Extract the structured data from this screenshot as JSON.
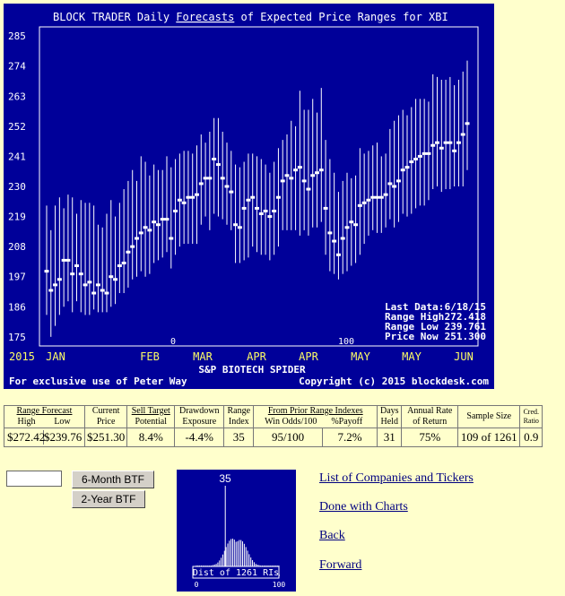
{
  "chart": {
    "title_prefix": "BLOCK TRADER Daily ",
    "title_link": "Forecasts",
    "title_suffix": " of Expected Price Ranges for  XBI",
    "y_ticks": [
      "285",
      "274",
      "263",
      "252",
      "241",
      "230",
      "219",
      "208",
      "197",
      "186",
      "175"
    ],
    "y_tick_values": [
      285,
      274,
      263,
      252,
      241,
      230,
      219,
      208,
      197,
      186,
      175
    ],
    "x_year": "2015",
    "x_months": [
      "JAN",
      "FEB",
      "MAR",
      "APR",
      "APR",
      "MAY",
      "MAY",
      "JUN"
    ],
    "marker_0": "0",
    "marker_100": "100",
    "company_name": "S&P BIOTECH SPIDER",
    "footer_left": "For exclusive use of Peter Way",
    "footer_right": "Copyright (c) 2015 blockdesk.com",
    "last_data_label": "Last Data:",
    "last_data_value": "6/18/15",
    "range_high_label": "Range High",
    "range_high_value": "272.418",
    "range_low_label": "Range Low",
    "range_low_value": "239.761",
    "price_now_label": "Price Now",
    "price_now_value": "251.300",
    "colors": {
      "background": "#000099",
      "text": "#ffffff",
      "month_labels": "#ffff66",
      "lines": "#ffffff"
    }
  },
  "chart_data": {
    "type": "range-forecast",
    "y_range": [
      172,
      288
    ],
    "points": [
      [
        0,
        199,
        183,
        223
      ],
      [
        1,
        192,
        175,
        214
      ],
      [
        2,
        194,
        179,
        223
      ],
      [
        3,
        196,
        183,
        226
      ],
      [
        4,
        203,
        186,
        222
      ],
      [
        5,
        203,
        188,
        227
      ],
      [
        6,
        198,
        184,
        226
      ],
      [
        7,
        201,
        188,
        220
      ],
      [
        8,
        198,
        184,
        225
      ],
      [
        9,
        194,
        183,
        224
      ],
      [
        10,
        195,
        183,
        224
      ],
      [
        11,
        191,
        185,
        223
      ],
      [
        12,
        194,
        184,
        216
      ],
      [
        13,
        192,
        184,
        215
      ],
      [
        14,
        191,
        184,
        220
      ],
      [
        15,
        197,
        186,
        225
      ],
      [
        16,
        196,
        187,
        219
      ],
      [
        17,
        201,
        191,
        224
      ],
      [
        18,
        202,
        191,
        229
      ],
      [
        19,
        206,
        193,
        232
      ],
      [
        20,
        208,
        196,
        236
      ],
      [
        21,
        211,
        197,
        232
      ],
      [
        22,
        213,
        199,
        241
      ],
      [
        23,
        215,
        197,
        239
      ],
      [
        24,
        214,
        198,
        234
      ],
      [
        25,
        217,
        202,
        238
      ],
      [
        26,
        216,
        203,
        236
      ],
      [
        27,
        218,
        204,
        236
      ],
      [
        28,
        218,
        206,
        241
      ],
      [
        29,
        211,
        200,
        237
      ],
      [
        30,
        221,
        205,
        240
      ],
      [
        31,
        225,
        208,
        242
      ],
      [
        32,
        224,
        209,
        243
      ],
      [
        33,
        226,
        209,
        243
      ],
      [
        34,
        226,
        209,
        242
      ],
      [
        35,
        227,
        209,
        245
      ],
      [
        36,
        231,
        216,
        249
      ],
      [
        37,
        233,
        219,
        246
      ],
      [
        38,
        233,
        214,
        250
      ],
      [
        39,
        240,
        220,
        255
      ],
      [
        40,
        238,
        219,
        255
      ],
      [
        41,
        233,
        218,
        250
      ],
      [
        42,
        230,
        216,
        246
      ],
      [
        43,
        228,
        214,
        243
      ],
      [
        44,
        216,
        202,
        238
      ],
      [
        45,
        215,
        202,
        237
      ],
      [
        46,
        222,
        203,
        239
      ],
      [
        47,
        225,
        204,
        242
      ],
      [
        48,
        226,
        208,
        242
      ],
      [
        49,
        222,
        206,
        241
      ],
      [
        50,
        220,
        205,
        240
      ],
      [
        51,
        221,
        205,
        238
      ],
      [
        52,
        219,
        203,
        235
      ],
      [
        53,
        221,
        205,
        239
      ],
      [
        54,
        226,
        208,
        244
      ],
      [
        55,
        232,
        214,
        247
      ],
      [
        56,
        234,
        214,
        249
      ],
      [
        57,
        233,
        214,
        254
      ],
      [
        58,
        236,
        214,
        252
      ],
      [
        59,
        237,
        212,
        265
      ],
      [
        60,
        232,
        214,
        258
      ],
      [
        61,
        229,
        212,
        258
      ],
      [
        62,
        234,
        215,
        262
      ],
      [
        63,
        235,
        215,
        257
      ],
      [
        64,
        236,
        217,
        266
      ],
      [
        65,
        222,
        205,
        247
      ],
      [
        66,
        213,
        199,
        240
      ],
      [
        67,
        210,
        198,
        235
      ],
      [
        68,
        205,
        196,
        228
      ],
      [
        69,
        211,
        198,
        232
      ],
      [
        70,
        215,
        199,
        235
      ],
      [
        71,
        217,
        201,
        233
      ],
      [
        72,
        216,
        202,
        234
      ],
      [
        73,
        223,
        205,
        244
      ],
      [
        74,
        224,
        209,
        242
      ],
      [
        75,
        225,
        212,
        243
      ],
      [
        76,
        226,
        214,
        245
      ],
      [
        77,
        226,
        213,
        246
      ],
      [
        78,
        226,
        213,
        241
      ],
      [
        79,
        227,
        215,
        242
      ],
      [
        80,
        231,
        218,
        251
      ],
      [
        81,
        230,
        215,
        254
      ],
      [
        82,
        232,
        217,
        256
      ],
      [
        83,
        236,
        220,
        258
      ],
      [
        84,
        237,
        219,
        256
      ],
      [
        85,
        239,
        220,
        259
      ],
      [
        86,
        240,
        222,
        262
      ],
      [
        87,
        241,
        223,
        262
      ],
      [
        88,
        242,
        223,
        262
      ],
      [
        89,
        242,
        225,
        261
      ],
      [
        90,
        245,
        229,
        271
      ],
      [
        91,
        246,
        230,
        270
      ],
      [
        92,
        244,
        228,
        269
      ],
      [
        93,
        246,
        229,
        269
      ],
      [
        94,
        246,
        229,
        270
      ],
      [
        95,
        243,
        230,
        267
      ],
      [
        96,
        246,
        230,
        269
      ],
      [
        97,
        249,
        230,
        272
      ],
      [
        98,
        253,
        236,
        276
      ]
    ]
  },
  "histogram": {
    "marker_value": "35",
    "caption": "Dist of 1261 RIs",
    "x_min": "0",
    "x_max": "100",
    "marker_position": 35
  },
  "table": {
    "headers": {
      "range_forecast": "Range Forecast",
      "high": "High",
      "low": "Low",
      "current_price_1": "Current",
      "current_price_2": "Price",
      "sell_target_1": "Sell Target",
      "sell_target_2": "Potential",
      "drawdown_1": "Drawdown",
      "drawdown_2": "Exposure",
      "range_index_1": "Range",
      "range_index_2": "Index",
      "prior_indexes": "From Prior Range Indexes",
      "win_odds": "Win Odds/100",
      "payoff": "%Payoff",
      "days_held_1": "Days",
      "days_held_2": "Held",
      "annual_rate_1": "Annual Rate",
      "annual_rate_2": "of Return",
      "sample_size": "Sample Size",
      "cred_ratio_1": "Cred.",
      "cred_ratio_2": "Ratio"
    },
    "values": {
      "high": "$272.42",
      "low": "$239.76",
      "current_price": "$251.30",
      "sell_target": "8.4%",
      "drawdown": "-4.4%",
      "range_index": "35",
      "win_odds": "95/100",
      "payoff": "7.2%",
      "days_held": "31",
      "annual_rate": "75%",
      "sample_size": "109 of 1261",
      "cred_ratio": "0.9"
    }
  },
  "controls": {
    "ticker_input_value": "",
    "btn_6month": "6-Month BTF",
    "btn_2year": "2-Year BTF"
  },
  "links": {
    "companies": "List of Companies and Tickers",
    "done": "Done with Charts",
    "back": "Back",
    "forward": "Forward"
  }
}
